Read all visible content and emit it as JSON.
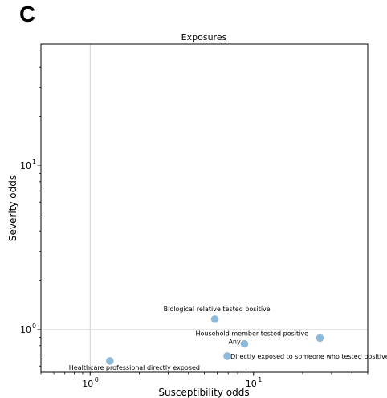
{
  "panel_letter": "C",
  "chart_data": {
    "type": "scatter",
    "title": "Exposures",
    "xlabel": "Susceptibility odds",
    "ylabel": "Severity odds",
    "x_scale": "log",
    "y_scale": "log",
    "xlim": [
      0.5,
      50
    ],
    "ylim": [
      0.55,
      55
    ],
    "x_major_ticks": [
      {
        "value": 1,
        "label": "10",
        "exp": "0"
      },
      {
        "value": 10,
        "label": "10",
        "exp": "1"
      }
    ],
    "y_major_ticks": [
      {
        "value": 1,
        "label": "10",
        "exp": "0"
      },
      {
        "value": 10,
        "label": "10",
        "exp": "1"
      }
    ],
    "reference_lines": {
      "x": 1,
      "y": 1
    },
    "grid": false,
    "marker_color": "#8fb9d8",
    "points": [
      {
        "label": "Biological relative tested positive",
        "x": 5.8,
        "y": 1.16
      },
      {
        "label": "Household member tested positive",
        "x": 25.5,
        "y": 0.89
      },
      {
        "label": "Any",
        "x": 8.8,
        "y": 0.82
      },
      {
        "label": "Directly exposed to someone who tested positive",
        "x": 6.9,
        "y": 0.69
      },
      {
        "label": "Healthcare professional directly exposed",
        "x": 1.32,
        "y": 0.645
      }
    ]
  }
}
